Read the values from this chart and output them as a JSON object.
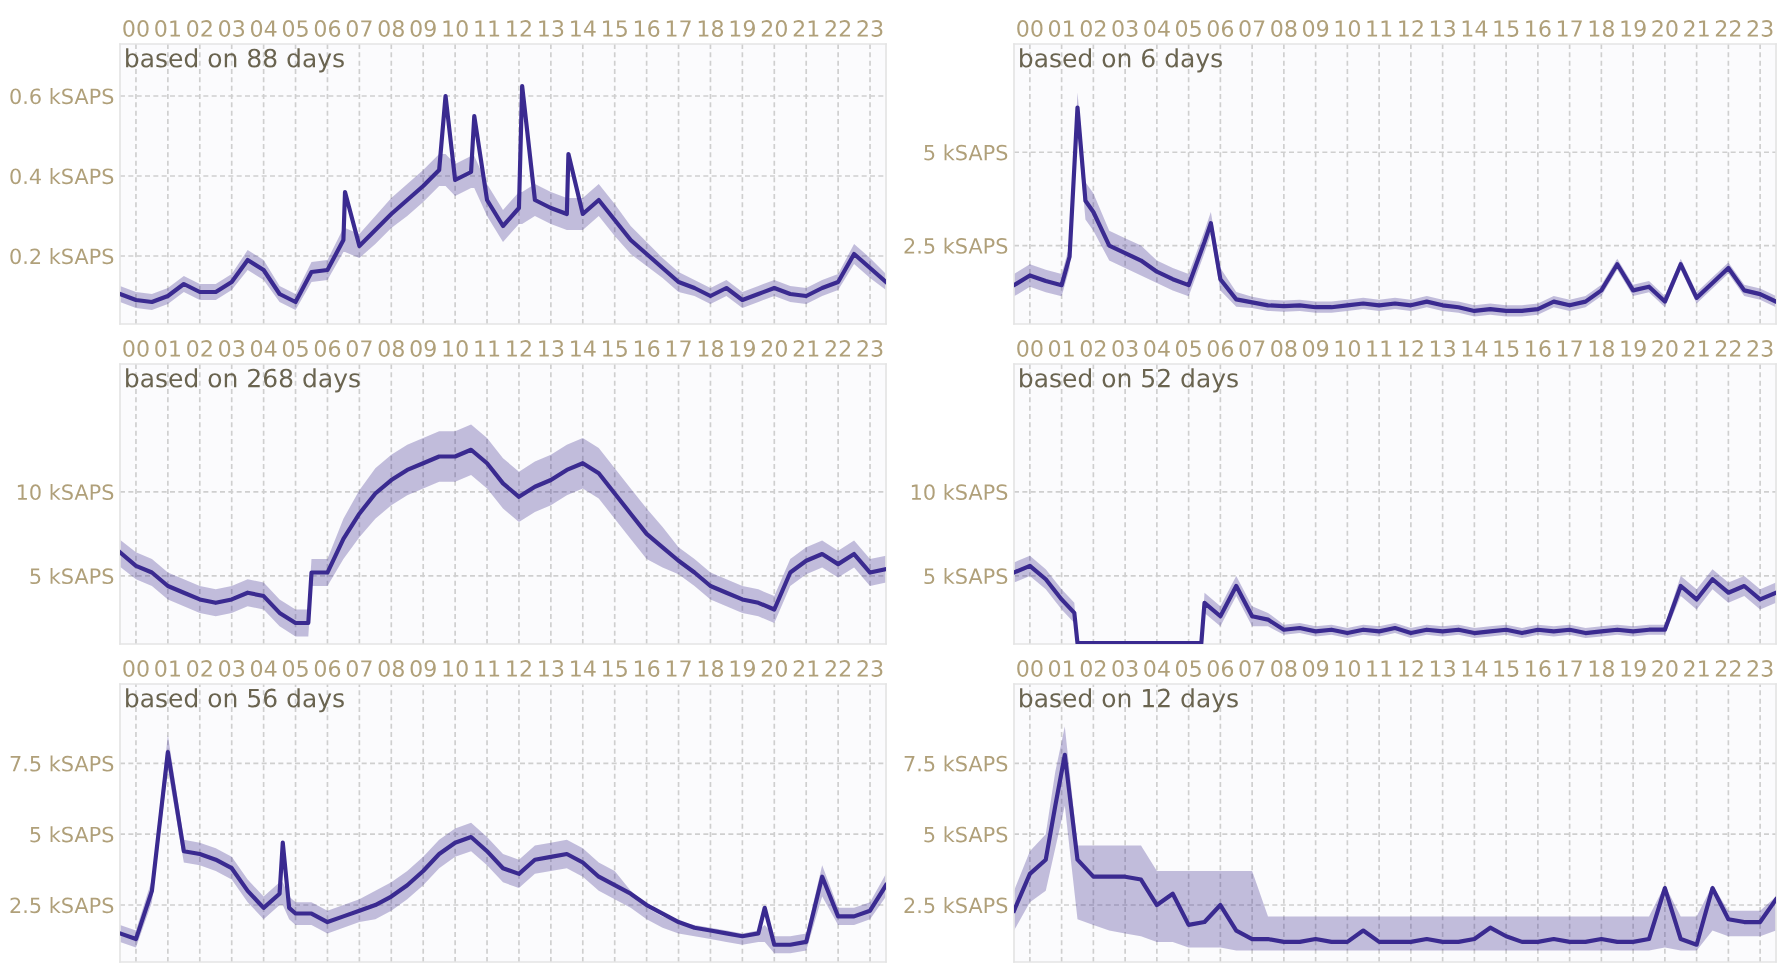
{
  "chart_data": [
    {
      "type": "line",
      "title": "based on 88 days",
      "xlim": [
        0,
        24
      ],
      "ylim": [
        0.03,
        0.73
      ],
      "grid": true,
      "xticks": [
        {
          "value": 0.5,
          "label": "00"
        },
        {
          "value": 1.5,
          "label": "01"
        },
        {
          "value": 2.5,
          "label": "02"
        },
        {
          "value": 3.5,
          "label": "03"
        },
        {
          "value": 4.5,
          "label": "04"
        },
        {
          "value": 5.5,
          "label": "05"
        },
        {
          "value": 6.5,
          "label": "06"
        },
        {
          "value": 7.5,
          "label": "07"
        },
        {
          "value": 8.5,
          "label": "08"
        },
        {
          "value": 9.5,
          "label": "09"
        },
        {
          "value": 10.5,
          "label": "10"
        },
        {
          "value": 11.5,
          "label": "11"
        },
        {
          "value": 12.5,
          "label": "12"
        },
        {
          "value": 13.5,
          "label": "13"
        },
        {
          "value": 14.5,
          "label": "14"
        },
        {
          "value": 15.5,
          "label": "15"
        },
        {
          "value": 16.5,
          "label": "16"
        },
        {
          "value": 17.5,
          "label": "17"
        },
        {
          "value": 18.5,
          "label": "18"
        },
        {
          "value": 19.5,
          "label": "19"
        },
        {
          "value": 20.5,
          "label": "20"
        },
        {
          "value": 21.5,
          "label": "21"
        },
        {
          "value": 22.5,
          "label": "22"
        },
        {
          "value": 23.5,
          "label": "23"
        }
      ],
      "yticks": [
        {
          "value": 0.2,
          "label": "0.2 kSAPS"
        },
        {
          "value": 0.4,
          "label": "0.4 kSAPS"
        },
        {
          "value": 0.6,
          "label": "0.6 kSAPS"
        }
      ],
      "series": [
        {
          "color": "#3a2a90",
          "x": [
            0,
            0.5,
            1,
            1.5,
            2,
            2.5,
            3,
            3.5,
            4,
            4.5,
            5,
            5.5,
            6,
            6.5,
            7,
            7.05,
            7.5,
            8,
            8.5,
            9,
            9.5,
            10,
            10.2,
            10.5,
            11,
            11.1,
            11.5,
            12,
            12.5,
            12.6,
            13,
            13.5,
            14,
            14.05,
            14.5,
            15,
            15.5,
            16,
            16.5,
            17,
            17.5,
            18,
            18.5,
            19,
            19.5,
            20,
            20.5,
            21,
            21.5,
            22,
            22.5,
            23,
            23.5,
            24
          ],
          "values": [
            0.105,
            0.09,
            0.085,
            0.1,
            0.13,
            0.11,
            0.11,
            0.135,
            0.19,
            0.165,
            0.105,
            0.085,
            0.16,
            0.165,
            0.24,
            0.36,
            0.225,
            0.265,
            0.305,
            0.34,
            0.375,
            0.415,
            0.6,
            0.39,
            0.41,
            0.55,
            0.34,
            0.275,
            0.32,
            0.625,
            0.34,
            0.32,
            0.305,
            0.455,
            0.305,
            0.34,
            0.29,
            0.24,
            0.205,
            0.17,
            0.135,
            0.12,
            0.1,
            0.12,
            0.09,
            0.105,
            0.12,
            0.105,
            0.1,
            0.12,
            0.135,
            0.205,
            0.17,
            0.135
          ],
          "lower": [
            0.085,
            0.07,
            0.065,
            0.08,
            0.11,
            0.09,
            0.09,
            0.115,
            0.165,
            0.14,
            0.085,
            0.065,
            0.135,
            0.14,
            0.21,
            0.21,
            0.195,
            0.23,
            0.27,
            0.3,
            0.335,
            0.375,
            0.375,
            0.35,
            0.37,
            0.37,
            0.3,
            0.235,
            0.28,
            0.28,
            0.3,
            0.28,
            0.265,
            0.265,
            0.265,
            0.3,
            0.25,
            0.205,
            0.175,
            0.145,
            0.11,
            0.1,
            0.08,
            0.1,
            0.07,
            0.085,
            0.1,
            0.085,
            0.08,
            0.1,
            0.115,
            0.18,
            0.145,
            0.115
          ],
          "upper": [
            0.125,
            0.11,
            0.105,
            0.12,
            0.15,
            0.13,
            0.13,
            0.155,
            0.215,
            0.19,
            0.125,
            0.105,
            0.185,
            0.19,
            0.27,
            0.27,
            0.255,
            0.3,
            0.345,
            0.38,
            0.415,
            0.455,
            0.455,
            0.43,
            0.45,
            0.45,
            0.38,
            0.315,
            0.36,
            0.36,
            0.38,
            0.36,
            0.345,
            0.345,
            0.345,
            0.38,
            0.33,
            0.275,
            0.235,
            0.195,
            0.16,
            0.14,
            0.12,
            0.14,
            0.11,
            0.125,
            0.14,
            0.125,
            0.12,
            0.14,
            0.155,
            0.23,
            0.195,
            0.155
          ]
        }
      ]
    },
    {
      "type": "line",
      "title": "based on 6 days",
      "xlim": [
        0,
        24
      ],
      "ylim": [
        0.4,
        7.9
      ],
      "grid": true,
      "xticks": [
        {
          "value": 0.5,
          "label": "00"
        },
        {
          "value": 1.5,
          "label": "01"
        },
        {
          "value": 2.5,
          "label": "02"
        },
        {
          "value": 3.5,
          "label": "03"
        },
        {
          "value": 4.5,
          "label": "04"
        },
        {
          "value": 5.5,
          "label": "05"
        },
        {
          "value": 6.5,
          "label": "06"
        },
        {
          "value": 7.5,
          "label": "07"
        },
        {
          "value": 8.5,
          "label": "08"
        },
        {
          "value": 9.5,
          "label": "09"
        },
        {
          "value": 10.5,
          "label": "10"
        },
        {
          "value": 11.5,
          "label": "11"
        },
        {
          "value": 12.5,
          "label": "12"
        },
        {
          "value": 13.5,
          "label": "13"
        },
        {
          "value": 14.5,
          "label": "14"
        },
        {
          "value": 15.5,
          "label": "15"
        },
        {
          "value": 16.5,
          "label": "16"
        },
        {
          "value": 17.5,
          "label": "17"
        },
        {
          "value": 18.5,
          "label": "18"
        },
        {
          "value": 19.5,
          "label": "19"
        },
        {
          "value": 20.5,
          "label": "20"
        },
        {
          "value": 21.5,
          "label": "21"
        },
        {
          "value": 22.5,
          "label": "22"
        },
        {
          "value": 23.5,
          "label": "23"
        }
      ],
      "yticks": [
        {
          "value": 2.5,
          "label": "2.5 kSAPS"
        },
        {
          "value": 5,
          "label": "5 kSAPS"
        }
      ],
      "series": [
        {
          "color": "#3a2a90",
          "x": [
            0,
            0.5,
            1,
            1.5,
            1.75,
            2,
            2.25,
            2.5,
            3,
            3.5,
            4,
            4.5,
            5,
            5.5,
            6,
            6.2,
            6.5,
            7,
            7.5,
            8,
            8.5,
            9,
            9.5,
            10,
            10.5,
            11,
            11.5,
            12,
            12.5,
            13,
            13.5,
            14,
            14.5,
            15,
            15.5,
            16,
            16.5,
            17,
            17.5,
            18,
            18.5,
            19,
            19.5,
            20,
            20.5,
            21,
            21.5,
            22,
            22.5,
            23,
            23.5,
            24
          ],
          "values": [
            1.44,
            1.7,
            1.55,
            1.44,
            2.2,
            6.2,
            3.7,
            3.4,
            2.5,
            2.3,
            2.1,
            1.8,
            1.6,
            1.44,
            2.6,
            3.1,
            1.6,
            1.06,
            0.98,
            0.9,
            0.88,
            0.9,
            0.85,
            0.85,
            0.9,
            0.95,
            0.9,
            0.95,
            0.9,
            1.0,
            0.9,
            0.85,
            0.75,
            0.8,
            0.75,
            0.75,
            0.8,
            1.0,
            0.9,
            1.0,
            1.3,
            2.0,
            1.3,
            1.4,
            1.0,
            2.0,
            1.1,
            1.5,
            1.9,
            1.3,
            1.2,
            1.0
          ],
          "lower": [
            1.14,
            1.4,
            1.25,
            1.14,
            1.9,
            5.6,
            3.2,
            2.9,
            2.1,
            1.9,
            1.7,
            1.5,
            1.3,
            1.14,
            2.3,
            2.8,
            1.3,
            0.86,
            0.83,
            0.75,
            0.73,
            0.75,
            0.7,
            0.7,
            0.75,
            0.8,
            0.75,
            0.8,
            0.75,
            0.85,
            0.75,
            0.7,
            0.6,
            0.65,
            0.6,
            0.6,
            0.65,
            0.85,
            0.75,
            0.85,
            1.15,
            1.85,
            1.15,
            1.25,
            0.85,
            1.85,
            0.95,
            1.35,
            1.75,
            1.15,
            1.05,
            0.85
          ],
          "upper": [
            1.74,
            2.0,
            1.85,
            1.74,
            2.5,
            6.6,
            4.2,
            3.9,
            2.9,
            2.7,
            2.5,
            2.1,
            1.9,
            1.74,
            2.9,
            3.4,
            1.9,
            1.26,
            1.13,
            1.05,
            1.03,
            1.05,
            1.0,
            1.0,
            1.05,
            1.1,
            1.05,
            1.1,
            1.05,
            1.15,
            1.05,
            1.0,
            0.9,
            0.95,
            0.9,
            0.9,
            0.95,
            1.15,
            1.05,
            1.15,
            1.45,
            2.15,
            1.45,
            1.55,
            1.15,
            2.15,
            1.25,
            1.65,
            2.05,
            1.45,
            1.35,
            1.15
          ]
        }
      ]
    },
    {
      "type": "line",
      "title": "based on 268 days",
      "xlim": [
        0,
        24
      ],
      "ylim": [
        0.95,
        17.6
      ],
      "grid": true,
      "xticks": [
        {
          "value": 0.5,
          "label": "00"
        },
        {
          "value": 1.5,
          "label": "01"
        },
        {
          "value": 2.5,
          "label": "02"
        },
        {
          "value": 3.5,
          "label": "03"
        },
        {
          "value": 4.5,
          "label": "04"
        },
        {
          "value": 5.5,
          "label": "05"
        },
        {
          "value": 6.5,
          "label": "06"
        },
        {
          "value": 7.5,
          "label": "07"
        },
        {
          "value": 8.5,
          "label": "08"
        },
        {
          "value": 9.5,
          "label": "09"
        },
        {
          "value": 10.5,
          "label": "10"
        },
        {
          "value": 11.5,
          "label": "11"
        },
        {
          "value": 12.5,
          "label": "12"
        },
        {
          "value": 13.5,
          "label": "13"
        },
        {
          "value": 14.5,
          "label": "14"
        },
        {
          "value": 15.5,
          "label": "15"
        },
        {
          "value": 16.5,
          "label": "16"
        },
        {
          "value": 17.5,
          "label": "17"
        },
        {
          "value": 18.5,
          "label": "18"
        },
        {
          "value": 19.5,
          "label": "19"
        },
        {
          "value": 20.5,
          "label": "20"
        },
        {
          "value": 21.5,
          "label": "21"
        },
        {
          "value": 22.5,
          "label": "22"
        },
        {
          "value": 23.5,
          "label": "23"
        }
      ],
      "yticks": [
        {
          "value": 5,
          "label": "5 kSAPS"
        },
        {
          "value": 10,
          "label": "10 kSAPS"
        }
      ],
      "series": [
        {
          "color": "#3a2a90",
          "x": [
            0,
            0.5,
            1,
            1.5,
            2,
            2.5,
            3,
            3.5,
            4,
            4.5,
            5,
            5.5,
            5.9,
            6,
            6.5,
            7,
            7.5,
            8,
            8.5,
            9,
            9.5,
            10,
            10.5,
            11,
            11.5,
            12,
            12.5,
            13,
            13.5,
            14,
            14.5,
            15,
            15.5,
            16,
            16.5,
            17,
            17.5,
            18,
            18.5,
            19,
            19.5,
            20,
            20.5,
            21,
            21.5,
            22,
            22.5,
            23,
            23.5,
            24
          ],
          "values": [
            6.4,
            5.6,
            5.2,
            4.4,
            4.0,
            3.6,
            3.4,
            3.6,
            4.0,
            3.8,
            2.8,
            2.2,
            2.2,
            5.2,
            5.2,
            7.2,
            8.7,
            9.9,
            10.7,
            11.3,
            11.7,
            12.1,
            12.1,
            12.5,
            11.7,
            10.5,
            9.7,
            10.3,
            10.7,
            11.3,
            11.7,
            11.1,
            9.9,
            8.7,
            7.5,
            6.7,
            5.9,
            5.2,
            4.4,
            4.0,
            3.6,
            3.4,
            3.0,
            5.2,
            5.9,
            6.3,
            5.7,
            6.3,
            5.2,
            5.4
          ],
          "lower": [
            5.55,
            4.8,
            4.4,
            3.6,
            3.2,
            2.8,
            2.6,
            2.8,
            3.2,
            3.0,
            2.0,
            1.4,
            1.4,
            4.4,
            4.4,
            6.0,
            7.3,
            8.4,
            9.2,
            9.8,
            10.2,
            10.6,
            10.6,
            11.0,
            10.2,
            9.0,
            8.2,
            8.8,
            9.2,
            9.8,
            10.2,
            9.6,
            8.4,
            7.2,
            6.0,
            5.5,
            5.1,
            4.4,
            3.6,
            3.2,
            2.8,
            2.6,
            2.2,
            4.4,
            5.1,
            5.5,
            4.9,
            5.5,
            4.4,
            4.6
          ],
          "upper": [
            7.15,
            6.4,
            6.0,
            5.2,
            4.8,
            4.4,
            4.2,
            4.4,
            4.8,
            4.6,
            3.6,
            3.0,
            3.0,
            6.0,
            6.0,
            8.4,
            10.1,
            11.4,
            12.2,
            12.8,
            13.2,
            13.6,
            13.6,
            14.0,
            13.2,
            12.0,
            11.2,
            11.8,
            12.2,
            12.8,
            13.2,
            12.6,
            11.4,
            10.2,
            9.0,
            7.9,
            6.7,
            6.0,
            5.2,
            4.8,
            4.4,
            4.2,
            3.8,
            6.0,
            6.7,
            7.1,
            6.5,
            7.1,
            6.0,
            6.2
          ]
        }
      ]
    },
    {
      "type": "line",
      "title": "based on 52 days",
      "xlim": [
        0,
        24
      ],
      "ylim": [
        0.95,
        17.6
      ],
      "grid": true,
      "xticks": [
        {
          "value": 0.5,
          "label": "00"
        },
        {
          "value": 1.5,
          "label": "01"
        },
        {
          "value": 2.5,
          "label": "02"
        },
        {
          "value": 3.5,
          "label": "03"
        },
        {
          "value": 4.5,
          "label": "04"
        },
        {
          "value": 5.5,
          "label": "05"
        },
        {
          "value": 6.5,
          "label": "06"
        },
        {
          "value": 7.5,
          "label": "07"
        },
        {
          "value": 8.5,
          "label": "08"
        },
        {
          "value": 9.5,
          "label": "09"
        },
        {
          "value": 10.5,
          "label": "10"
        },
        {
          "value": 11.5,
          "label": "11"
        },
        {
          "value": 12.5,
          "label": "12"
        },
        {
          "value": 13.5,
          "label": "13"
        },
        {
          "value": 14.5,
          "label": "14"
        },
        {
          "value": 15.5,
          "label": "15"
        },
        {
          "value": 16.5,
          "label": "16"
        },
        {
          "value": 17.5,
          "label": "17"
        },
        {
          "value": 18.5,
          "label": "18"
        },
        {
          "value": 19.5,
          "label": "19"
        },
        {
          "value": 20.5,
          "label": "20"
        },
        {
          "value": 21.5,
          "label": "21"
        },
        {
          "value": 22.5,
          "label": "22"
        },
        {
          "value": 23.5,
          "label": "23"
        }
      ],
      "yticks": [
        {
          "value": 5,
          "label": "5 kSAPS"
        },
        {
          "value": 10,
          "label": "10 kSAPS"
        }
      ],
      "series": [
        {
          "color": "#3a2a90",
          "x": [
            0,
            0.5,
            1,
            1.5,
            1.9,
            2,
            2.5,
            3,
            3.5,
            4,
            4.5,
            5,
            5.5,
            5.9,
            6,
            6.5,
            7,
            7.5,
            8,
            8.5,
            9,
            9.5,
            10,
            10.5,
            11,
            11.5,
            12,
            12.5,
            13,
            13.5,
            14,
            14.5,
            15,
            15.5,
            16,
            16.5,
            17,
            17.5,
            18,
            18.5,
            19,
            19.5,
            20,
            20.5,
            21,
            21.5,
            22,
            22.5,
            23,
            23.5,
            24
          ],
          "values": [
            5.2,
            5.6,
            4.8,
            3.6,
            2.8,
            1.0,
            1.0,
            1.0,
            1.0,
            1.0,
            1.0,
            1.0,
            1.0,
            1.0,
            3.4,
            2.6,
            4.4,
            2.6,
            2.4,
            1.8,
            1.9,
            1.7,
            1.8,
            1.6,
            1.8,
            1.7,
            1.9,
            1.6,
            1.8,
            1.7,
            1.8,
            1.6,
            1.7,
            1.8,
            1.6,
            1.8,
            1.7,
            1.8,
            1.6,
            1.7,
            1.8,
            1.7,
            1.8,
            1.8,
            4.4,
            3.6,
            4.8,
            4.0,
            4.4,
            3.6,
            4.0
          ],
          "lower": [
            4.6,
            5.0,
            4.2,
            3.0,
            2.2,
            1.0,
            1.0,
            1.0,
            1.0,
            1.0,
            1.0,
            1.0,
            1.0,
            1.0,
            2.8,
            2.0,
            3.8,
            2.0,
            2.0,
            1.5,
            1.6,
            1.4,
            1.5,
            1.3,
            1.5,
            1.4,
            1.6,
            1.3,
            1.5,
            1.4,
            1.5,
            1.3,
            1.4,
            1.5,
            1.3,
            1.5,
            1.4,
            1.5,
            1.3,
            1.4,
            1.5,
            1.4,
            1.5,
            1.5,
            3.8,
            3.0,
            4.2,
            3.4,
            3.8,
            3.0,
            3.4
          ],
          "upper": [
            5.8,
            6.2,
            5.4,
            4.2,
            3.4,
            1.0,
            1.0,
            1.0,
            1.0,
            1.0,
            1.0,
            1.0,
            1.0,
            1.0,
            4.0,
            3.2,
            5.0,
            3.2,
            2.8,
            2.1,
            2.2,
            2.0,
            2.1,
            1.9,
            2.1,
            2.0,
            2.2,
            1.9,
            2.1,
            2.0,
            2.1,
            1.9,
            2.0,
            2.1,
            1.9,
            2.1,
            2.0,
            2.1,
            1.9,
            2.0,
            2.1,
            2.0,
            2.1,
            2.1,
            5.0,
            4.2,
            5.4,
            4.6,
            5.0,
            4.2,
            4.6
          ]
        }
      ]
    },
    {
      "type": "line",
      "title": "based on 56 days",
      "xlim": [
        0,
        24
      ],
      "ylim": [
        0.49,
        10.3
      ],
      "grid": true,
      "xticks": [
        {
          "value": 0.5,
          "label": "00"
        },
        {
          "value": 1.5,
          "label": "01"
        },
        {
          "value": 2.5,
          "label": "02"
        },
        {
          "value": 3.5,
          "label": "03"
        },
        {
          "value": 4.5,
          "label": "04"
        },
        {
          "value": 5.5,
          "label": "05"
        },
        {
          "value": 6.5,
          "label": "06"
        },
        {
          "value": 7.5,
          "label": "07"
        },
        {
          "value": 8.5,
          "label": "08"
        },
        {
          "value": 9.5,
          "label": "09"
        },
        {
          "value": 10.5,
          "label": "10"
        },
        {
          "value": 11.5,
          "label": "11"
        },
        {
          "value": 12.5,
          "label": "12"
        },
        {
          "value": 13.5,
          "label": "13"
        },
        {
          "value": 14.5,
          "label": "14"
        },
        {
          "value": 15.5,
          "label": "15"
        },
        {
          "value": 16.5,
          "label": "16"
        },
        {
          "value": 17.5,
          "label": "17"
        },
        {
          "value": 18.5,
          "label": "18"
        },
        {
          "value": 19.5,
          "label": "19"
        },
        {
          "value": 20.5,
          "label": "20"
        },
        {
          "value": 21.5,
          "label": "21"
        },
        {
          "value": 22.5,
          "label": "22"
        },
        {
          "value": 23.5,
          "label": "23"
        }
      ],
      "yticks": [
        {
          "value": 2.5,
          "label": "2.5 kSAPS"
        },
        {
          "value": 5,
          "label": "5 kSAPS"
        },
        {
          "value": 7.5,
          "label": "7.5 kSAPS"
        }
      ],
      "series": [
        {
          "color": "#3a2a90",
          "x": [
            0,
            0.5,
            1,
            1.5,
            2,
            2.5,
            3,
            3.5,
            4,
            4.5,
            5,
            5.1,
            5.3,
            5.5,
            6,
            6.5,
            7,
            7.5,
            8,
            8.5,
            9,
            9.5,
            10,
            10.5,
            11,
            11.5,
            12,
            12.5,
            13,
            13.5,
            14,
            14.5,
            15,
            15.5,
            16,
            16.5,
            17,
            17.5,
            18,
            18.5,
            19,
            19.5,
            20,
            20.2,
            20.5,
            21,
            21.5,
            22,
            22.5,
            23,
            23.5,
            24
          ],
          "values": [
            1.5,
            1.3,
            3.0,
            7.9,
            4.4,
            4.3,
            4.1,
            3.8,
            3.0,
            2.4,
            2.9,
            4.7,
            2.4,
            2.2,
            2.2,
            1.9,
            2.1,
            2.3,
            2.5,
            2.8,
            3.2,
            3.7,
            4.3,
            4.7,
            4.9,
            4.4,
            3.8,
            3.6,
            4.1,
            4.2,
            4.3,
            4.0,
            3.5,
            3.2,
            2.9,
            2.5,
            2.2,
            1.9,
            1.7,
            1.6,
            1.5,
            1.4,
            1.5,
            2.4,
            1.1,
            1.1,
            1.2,
            3.5,
            2.1,
            2.1,
            2.3,
            3.2
          ],
          "lower": [
            1.2,
            1.0,
            2.6,
            7.3,
            4.0,
            3.9,
            3.7,
            3.4,
            2.6,
            2.0,
            2.5,
            2.5,
            2.0,
            1.8,
            1.8,
            1.5,
            1.7,
            1.9,
            2.0,
            2.3,
            2.7,
            3.2,
            3.8,
            4.2,
            4.4,
            3.9,
            3.3,
            3.1,
            3.6,
            3.7,
            3.8,
            3.5,
            3.0,
            2.7,
            2.4,
            2.0,
            1.7,
            1.5,
            1.4,
            1.3,
            1.2,
            1.1,
            1.2,
            1.2,
            0.8,
            0.8,
            0.9,
            2.8,
            1.8,
            1.8,
            2.0,
            2.8
          ],
          "upper": [
            1.8,
            1.6,
            3.4,
            8.5,
            4.8,
            4.7,
            4.5,
            4.2,
            3.4,
            2.8,
            3.3,
            3.3,
            2.8,
            2.6,
            2.6,
            2.3,
            2.5,
            2.7,
            3.0,
            3.3,
            3.7,
            4.2,
            4.8,
            5.2,
            5.4,
            4.9,
            4.3,
            4.1,
            4.6,
            4.7,
            4.8,
            4.5,
            4.0,
            3.7,
            3.0,
            2.4,
            2.1,
            1.9,
            1.8,
            1.7,
            1.6,
            1.5,
            1.6,
            1.8,
            1.4,
            1.4,
            1.5,
            3.9,
            2.4,
            2.4,
            2.6,
            3.6
          ]
        }
      ]
    },
    {
      "type": "line",
      "title": "based on 12 days",
      "xlim": [
        0,
        24
      ],
      "ylim": [
        0.49,
        10.3
      ],
      "grid": true,
      "xticks": [
        {
          "value": 0.5,
          "label": "00"
        },
        {
          "value": 1.5,
          "label": "01"
        },
        {
          "value": 2.5,
          "label": "02"
        },
        {
          "value": 3.5,
          "label": "03"
        },
        {
          "value": 4.5,
          "label": "04"
        },
        {
          "value": 5.5,
          "label": "05"
        },
        {
          "value": 6.5,
          "label": "06"
        },
        {
          "value": 7.5,
          "label": "07"
        },
        {
          "value": 8.5,
          "label": "08"
        },
        {
          "value": 9.5,
          "label": "09"
        },
        {
          "value": 10.5,
          "label": "10"
        },
        {
          "value": 11.5,
          "label": "11"
        },
        {
          "value": 12.5,
          "label": "12"
        },
        {
          "value": 13.5,
          "label": "13"
        },
        {
          "value": 14.5,
          "label": "14"
        },
        {
          "value": 15.5,
          "label": "15"
        },
        {
          "value": 16.5,
          "label": "16"
        },
        {
          "value": 17.5,
          "label": "17"
        },
        {
          "value": 18.5,
          "label": "18"
        },
        {
          "value": 19.5,
          "label": "19"
        },
        {
          "value": 20.5,
          "label": "20"
        },
        {
          "value": 21.5,
          "label": "21"
        },
        {
          "value": 22.5,
          "label": "22"
        },
        {
          "value": 23.5,
          "label": "23"
        }
      ],
      "yticks": [
        {
          "value": 2.5,
          "label": "2.5 kSAPS"
        },
        {
          "value": 5,
          "label": "5 kSAPS"
        },
        {
          "value": 7.5,
          "label": "7.5 kSAPS"
        }
      ],
      "series": [
        {
          "color": "#3a2a90",
          "x": [
            0,
            0.5,
            1,
            1.3,
            1.6,
            2,
            2.5,
            3,
            3.5,
            4,
            4.5,
            5,
            5.5,
            6,
            6.5,
            7,
            7.5,
            8,
            8.5,
            9,
            9.5,
            10,
            10.5,
            11,
            11.5,
            12,
            12.5,
            13,
            13.5,
            14,
            14.5,
            15,
            15.5,
            16,
            16.5,
            17,
            17.5,
            18,
            18.5,
            19,
            19.5,
            20,
            20.5,
            21,
            21.5,
            22,
            22.5,
            23,
            23.5,
            24
          ],
          "values": [
            2.3,
            3.6,
            4.1,
            6.0,
            7.8,
            4.1,
            3.5,
            3.5,
            3.5,
            3.4,
            2.5,
            2.9,
            1.8,
            1.9,
            2.5,
            1.6,
            1.3,
            1.3,
            1.2,
            1.2,
            1.3,
            1.2,
            1.2,
            1.6,
            1.2,
            1.2,
            1.2,
            1.3,
            1.2,
            1.2,
            1.3,
            1.7,
            1.4,
            1.2,
            1.2,
            1.3,
            1.2,
            1.2,
            1.3,
            1.2,
            1.2,
            1.3,
            3.1,
            1.3,
            1.1,
            3.1,
            2.0,
            1.9,
            1.9,
            2.7
          ],
          "lower": [
            1.6,
            2.6,
            3.0,
            4.5,
            6.0,
            2.0,
            1.8,
            1.6,
            1.5,
            1.4,
            1.2,
            1.2,
            1.0,
            1.0,
            1.0,
            0.9,
            0.9,
            0.9,
            0.9,
            0.9,
            0.9,
            0.9,
            0.9,
            0.9,
            0.9,
            0.9,
            0.9,
            0.9,
            0.9,
            0.9,
            0.9,
            0.9,
            0.9,
            0.9,
            0.9,
            0.9,
            0.9,
            0.9,
            0.9,
            0.9,
            0.9,
            0.9,
            1.0,
            0.9,
            0.9,
            1.6,
            1.4,
            1.4,
            1.4,
            1.6
          ],
          "upper": [
            3.0,
            4.4,
            5.0,
            7.2,
            8.8,
            4.6,
            4.6,
            4.6,
            4.6,
            4.6,
            3.7,
            3.7,
            3.7,
            3.7,
            3.7,
            3.7,
            3.7,
            2.1,
            2.1,
            2.1,
            2.1,
            2.1,
            2.1,
            2.1,
            2.1,
            2.1,
            2.1,
            2.1,
            2.1,
            2.1,
            2.1,
            2.1,
            2.1,
            2.1,
            2.1,
            2.1,
            2.1,
            2.1,
            2.1,
            2.1,
            2.1,
            2.1,
            3.2,
            2.1,
            2.1,
            3.2,
            2.3,
            2.3,
            2.3,
            2.8
          ]
        }
      ]
    }
  ]
}
